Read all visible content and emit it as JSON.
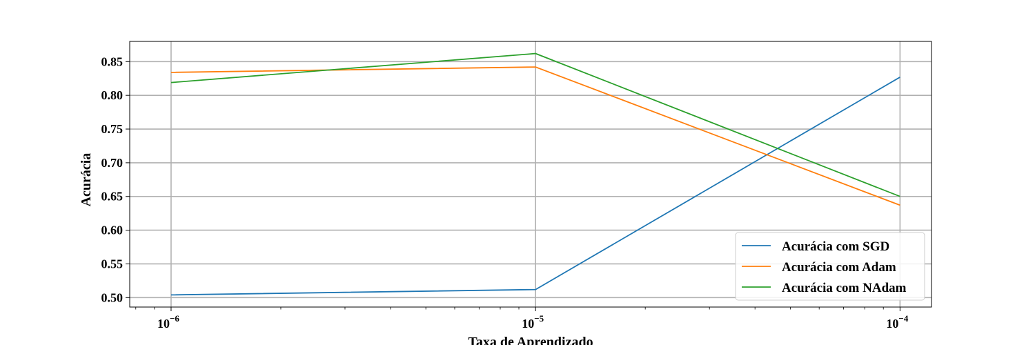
{
  "chart_data": {
    "type": "line",
    "xlabel": "Taxa de Aprendizado",
    "ylabel": "Acurácia",
    "xscale": "log",
    "x": [
      1e-06,
      1e-05,
      0.0001
    ],
    "xtick_labels": [
      {
        "base": "10",
        "exp": "−6"
      },
      {
        "base": "10",
        "exp": "−5"
      },
      {
        "base": "10",
        "exp": "−4"
      }
    ],
    "yticks": [
      0.5,
      0.55,
      0.6,
      0.65,
      0.7,
      0.75,
      0.8,
      0.85
    ],
    "ytick_labels": [
      "0.50",
      "0.55",
      "0.60",
      "0.65",
      "0.70",
      "0.75",
      "0.80",
      "0.85"
    ],
    "ylim": [
      0.486,
      0.88
    ],
    "xlim": [
      7.7e-07,
      0.000122
    ],
    "grid": true,
    "legend_position": "lower-right",
    "series": [
      {
        "name": "Acurácia com SGD",
        "color": "#1f77b4",
        "values": [
          0.504,
          0.512,
          0.827
        ]
      },
      {
        "name": "Acurácia com Adam",
        "color": "#ff7f0e",
        "values": [
          0.834,
          0.842,
          0.637
        ]
      },
      {
        "name": "Acurácia com NAdam",
        "color": "#2ca02c",
        "values": [
          0.819,
          0.862,
          0.65
        ]
      }
    ]
  }
}
